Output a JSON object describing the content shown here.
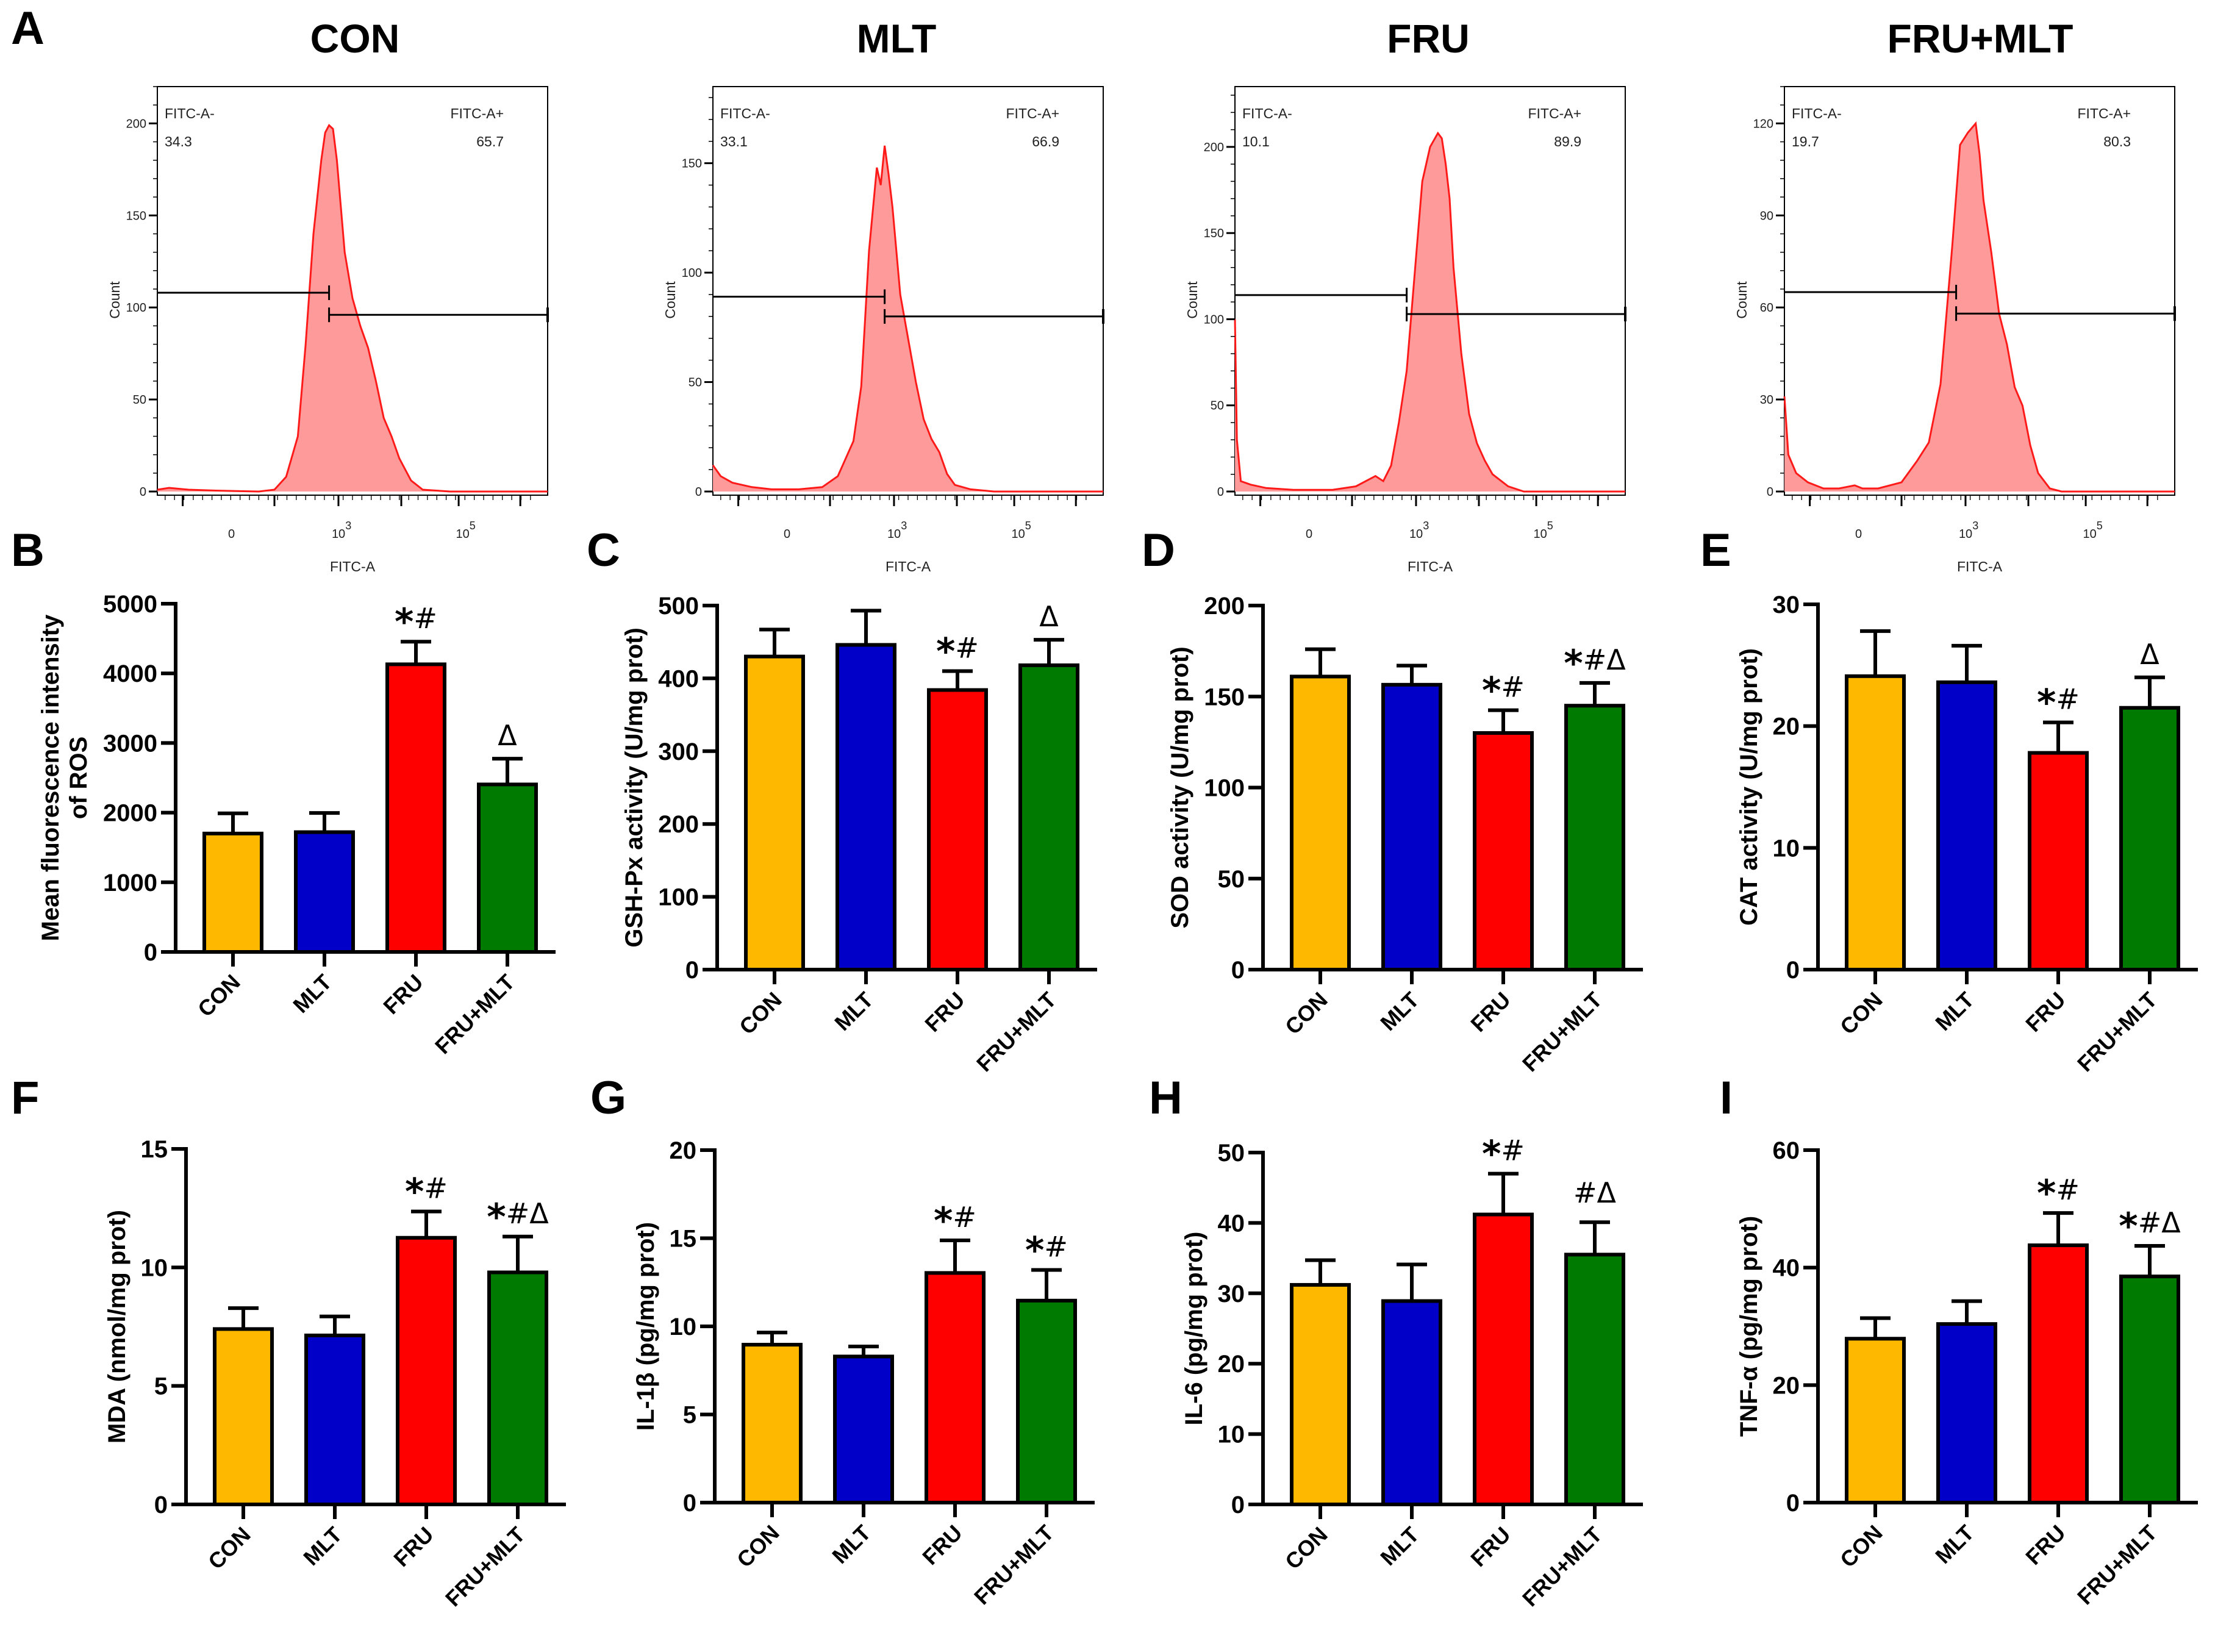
{
  "figure": {
    "group_colors": {
      "CON": "#FFB800",
      "MLT": "#0000C8",
      "FRU": "#FF0000",
      "FRU+MLT": "#007A00"
    },
    "histogram_fill": "#FF9A9A",
    "histogram_line": "#FF1A1A"
  },
  "chart_data": [
    {
      "panel": "A",
      "type": "area",
      "subtype": "flow-cytometry-histograms",
      "xlabel": "FITC-A",
      "ylabel": "Count",
      "x_scale": "biexponential",
      "x_tick_labels": [
        "0",
        "10^3",
        "10^5"
      ],
      "gates": [
        {
          "name": "FITC-A-"
        },
        {
          "name": "FITC-A+"
        }
      ],
      "histograms": [
        {
          "title": "CON",
          "ylim": [
            0,
            220
          ],
          "y_ticks": [
            0,
            50,
            100,
            150,
            200
          ],
          "gate_negative_label": "FITC-A-",
          "gate_negative_pct": "34.3",
          "gate_positive_label": "FITC-A+",
          "gate_positive_pct": "65.7",
          "gate_levels": {
            "negative": 108,
            "positive": 96
          },
          "peak_count": 199,
          "profile_x": [
            0.0,
            0.03,
            0.08,
            0.15,
            0.26,
            0.3,
            0.33,
            0.36,
            0.38,
            0.4,
            0.42,
            0.43,
            0.44,
            0.45,
            0.46,
            0.47,
            0.48,
            0.5,
            0.52,
            0.54,
            0.56,
            0.58,
            0.6,
            0.62,
            0.65,
            0.68,
            0.75,
            1.0
          ],
          "profile_y": [
            1,
            2,
            1,
            0.5,
            0,
            1,
            8,
            30,
            80,
            140,
            180,
            195,
            199,
            197,
            180,
            155,
            130,
            105,
            90,
            78,
            60,
            40,
            30,
            18,
            6,
            1,
            0,
            0
          ]
        },
        {
          "title": "MLT",
          "ylim": [
            0,
            185
          ],
          "y_ticks": [
            0,
            50,
            100,
            150
          ],
          "gate_negative_label": "FITC-A-",
          "gate_negative_pct": "33.1",
          "gate_positive_label": "FITC-A+",
          "gate_positive_pct": "66.9",
          "gate_levels": {
            "negative": 89,
            "positive": 80
          },
          "peak_count": 158,
          "profile_x": [
            0.0,
            0.02,
            0.05,
            0.1,
            0.15,
            0.22,
            0.28,
            0.32,
            0.36,
            0.38,
            0.4,
            0.42,
            0.43,
            0.44,
            0.45,
            0.46,
            0.47,
            0.48,
            0.5,
            0.52,
            0.54,
            0.56,
            0.58,
            0.6,
            0.62,
            0.66,
            0.72,
            0.8,
            1.0
          ],
          "profile_y": [
            12,
            7,
            4,
            2,
            1,
            1,
            2,
            7,
            23,
            48,
            110,
            148,
            140,
            158,
            145,
            130,
            110,
            90,
            70,
            50,
            33,
            24,
            18,
            8,
            3,
            1,
            0,
            0,
            0
          ]
        },
        {
          "title": "FRU",
          "ylim": [
            0,
            235
          ],
          "y_ticks": [
            0,
            50,
            100,
            150,
            200
          ],
          "gate_negative_label": "FITC-A-",
          "gate_negative_pct": "10.1",
          "gate_positive_label": "FITC-A+",
          "gate_positive_pct": "89.9",
          "gate_levels": {
            "negative": 114,
            "positive": 103
          },
          "peak_count": 209,
          "profile_x": [
            0.0,
            0.005,
            0.015,
            0.04,
            0.08,
            0.15,
            0.25,
            0.31,
            0.36,
            0.38,
            0.4,
            0.42,
            0.44,
            0.46,
            0.48,
            0.5,
            0.52,
            0.53,
            0.54,
            0.55,
            0.56,
            0.58,
            0.6,
            0.62,
            0.64,
            0.66,
            0.7,
            0.74,
            0.8,
            1.0
          ],
          "profile_y": [
            100,
            30,
            6,
            4,
            2,
            1,
            1,
            3,
            9,
            6,
            15,
            40,
            70,
            125,
            180,
            200,
            208,
            205,
            190,
            170,
            130,
            80,
            45,
            28,
            18,
            10,
            3,
            0,
            0,
            0
          ]
        },
        {
          "title": "FRU+MLT",
          "ylim": [
            0,
            132
          ],
          "y_ticks": [
            0,
            30,
            60,
            90,
            120
          ],
          "gate_negative_label": "FITC-A-",
          "gate_negative_pct": "19.7",
          "gate_positive_label": "FITC-A+",
          "gate_positive_pct": "80.3",
          "gate_levels": {
            "negative": 65,
            "positive": 58
          },
          "peak_count": 120,
          "profile_x": [
            0.0,
            0.01,
            0.03,
            0.06,
            0.1,
            0.14,
            0.18,
            0.2,
            0.24,
            0.3,
            0.34,
            0.37,
            0.4,
            0.43,
            0.45,
            0.47,
            0.49,
            0.5,
            0.51,
            0.53,
            0.55,
            0.57,
            0.59,
            0.61,
            0.63,
            0.65,
            0.68,
            0.71,
            0.75,
            0.8,
            1.0
          ],
          "profile_y": [
            31,
            12,
            6,
            3,
            1,
            1,
            2,
            1,
            1,
            3,
            10,
            16,
            35,
            80,
            113,
            117,
            120,
            110,
            95,
            78,
            58,
            48,
            34,
            28,
            15,
            6,
            1,
            0,
            0,
            0,
            0
          ]
        }
      ]
    },
    {
      "panel": "B",
      "type": "bar",
      "title": "",
      "xlabel": "",
      "ylabel": "Mean fluorescence intensity of ROS",
      "ylabel_lines": [
        "Mean fluorescence intensity",
        "of ROS"
      ],
      "categories": [
        "CON",
        "MLT",
        "FRU",
        "FRU+MLT"
      ],
      "values": [
        1700,
        1720,
        4130,
        2405
      ],
      "error_upper": [
        1990,
        1995,
        4455,
        2775
      ],
      "significance": [
        "",
        "",
        "*#",
        "Δ"
      ],
      "ylim": [
        0,
        5000
      ],
      "y_ticks": [
        0,
        1000,
        2000,
        3000,
        4000,
        5000
      ]
    },
    {
      "panel": "C",
      "type": "bar",
      "ylabel": "GSH-Px activity (U/mg prot)",
      "ylabel_lines": [
        "GSH-Px activity (U/mg prot)"
      ],
      "categories": [
        "CON",
        "MLT",
        "FRU",
        "FRU+MLT"
      ],
      "values": [
        430,
        446,
        384,
        418
      ],
      "error_upper": [
        467,
        493,
        410,
        453
      ],
      "significance": [
        "",
        "",
        "*#",
        "Δ"
      ],
      "ylim": [
        0,
        500
      ],
      "y_ticks": [
        0,
        100,
        200,
        300,
        400,
        500
      ]
    },
    {
      "panel": "D",
      "type": "bar",
      "ylabel": "SOD activity (U/mg prot)",
      "ylabel_lines": [
        "SOD activity (U/mg prot)"
      ],
      "categories": [
        "CON",
        "MLT",
        "FRU",
        "FRU+MLT"
      ],
      "values": [
        161,
        156.5,
        130,
        145
      ],
      "error_upper": [
        176,
        167,
        142.5,
        157.5
      ],
      "significance": [
        "",
        "",
        "*#",
        "*#Δ"
      ],
      "ylim": [
        0,
        200
      ],
      "y_ticks": [
        0,
        50,
        100,
        150,
        200
      ]
    },
    {
      "panel": "E",
      "type": "bar",
      "ylabel": "CAT activity (U/mg prot)",
      "ylabel_lines": [
        "CAT activity (U/mg prot)"
      ],
      "categories": [
        "CON",
        "MLT",
        "FRU",
        "FRU+MLT"
      ],
      "values": [
        24.1,
        23.6,
        17.8,
        21.5
      ],
      "error_upper": [
        27.8,
        26.6,
        20.3,
        24.0
      ],
      "significance": [
        "",
        "",
        "*#",
        "Δ"
      ],
      "ylim": [
        0,
        30
      ],
      "y_ticks": [
        0,
        10,
        20,
        30
      ]
    },
    {
      "panel": "F",
      "type": "bar",
      "ylabel": "MDA (nmol/mg prot)",
      "ylabel_lines": [
        "MDA (nmol/mg prot)"
      ],
      "categories": [
        "CON",
        "MLT",
        "FRU",
        "FRU+MLT"
      ],
      "values": [
        7.4,
        7.13,
        11.25,
        9.79
      ],
      "error_upper": [
        8.28,
        7.93,
        12.36,
        11.3
      ],
      "significance": [
        "",
        "",
        "*#",
        "*#Δ"
      ],
      "ylim": [
        0,
        15
      ],
      "y_ticks": [
        0,
        5,
        10,
        15
      ]
    },
    {
      "panel": "G",
      "type": "bar",
      "ylabel": "IL-1β (pg/mg prot)",
      "ylabel_lines": [
        "IL-1β (pg/mg prot)"
      ],
      "categories": [
        "CON",
        "MLT",
        "FRU",
        "FRU+MLT"
      ],
      "values": [
        8.96,
        8.29,
        13.03,
        11.46
      ],
      "error_upper": [
        9.65,
        8.86,
        14.88,
        13.2
      ],
      "significance": [
        "",
        "",
        "*#",
        "*#"
      ],
      "ylim": [
        0,
        20
      ],
      "y_ticks": [
        0,
        5,
        10,
        15,
        20
      ]
    },
    {
      "panel": "H",
      "type": "bar",
      "ylabel": "IL-6 (pg/mg prot)",
      "ylabel_lines": [
        "IL-6 (pg/mg prot)"
      ],
      "categories": [
        "CON",
        "MLT",
        "FRU",
        "FRU+MLT"
      ],
      "values": [
        31.2,
        28.9,
        41.2,
        35.5
      ],
      "error_upper": [
        34.7,
        34.1,
        47.0,
        40.1
      ],
      "significance": [
        "",
        "",
        "*#",
        "#Δ"
      ],
      "ylim": [
        0,
        50
      ],
      "y_ticks": [
        0,
        10,
        20,
        30,
        40,
        50
      ]
    },
    {
      "panel": "I",
      "type": "bar",
      "ylabel": "TNF-α (pg/mg prot)",
      "ylabel_lines": [
        "TNF-α (pg/mg prot)"
      ],
      "categories": [
        "CON",
        "MLT",
        "FRU",
        "FRU+MLT"
      ],
      "values": [
        27.9,
        30.4,
        43.8,
        38.5
      ],
      "error_upper": [
        31.4,
        34.3,
        49.3,
        43.7
      ],
      "significance": [
        "",
        "",
        "*#",
        "*#Δ"
      ],
      "ylim": [
        0,
        60
      ],
      "y_ticks": [
        0,
        20,
        40,
        60
      ]
    }
  ]
}
